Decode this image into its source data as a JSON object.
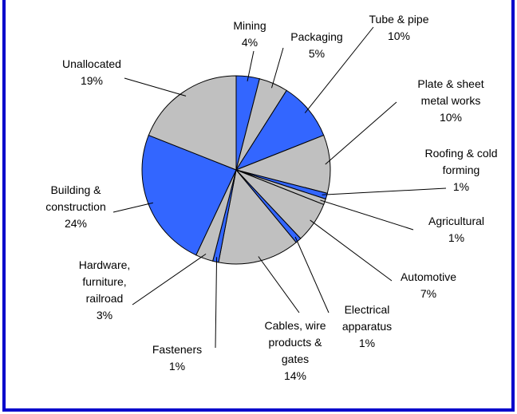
{
  "chart_data": {
    "type": "pie",
    "categories": [
      "Mining",
      "Packaging",
      "Tube & pipe",
      "Plate & sheet metal works",
      "Roofing & cold forming",
      "Agricultural",
      "Automotive",
      "Electrical apparatus",
      "Cables, wire products & gates",
      "Fasteners",
      "Hardware, furniture, railroad",
      "Building & construction",
      "Unallocated"
    ],
    "values": [
      4,
      5,
      10,
      10,
      1,
      1,
      7,
      1,
      14,
      1,
      3,
      24,
      19
    ],
    "value_labels": [
      "4%",
      "5%",
      "10%",
      "10%",
      "1%",
      "1%",
      "7%",
      "1%",
      "14%",
      "1%",
      "3%",
      "24%",
      "19%"
    ],
    "colors": [
      "#3366ff",
      "#c0c0c0",
      "#3366ff",
      "#c0c0c0",
      "#3366ff",
      "#c0c0c0",
      "#c0c0c0",
      "#3366ff",
      "#c0c0c0",
      "#3366ff",
      "#c0c0c0",
      "#3366ff",
      "#c0c0c0"
    ]
  }
}
